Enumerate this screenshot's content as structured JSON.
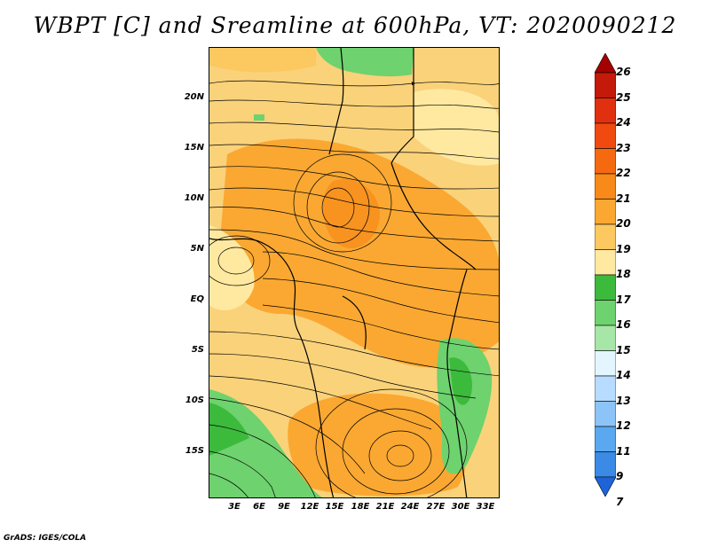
{
  "title": "WBPT [C] and Sreamline at 600hPa, VT: 2020090212",
  "footer": "GrADS: IGES/COLA",
  "map": {
    "lat_ticks": [
      "20N",
      "15N",
      "10N",
      "5N",
      "EQ",
      "5S",
      "10S",
      "15S"
    ],
    "lon_ticks": [
      "3E",
      "6E",
      "9E",
      "12E",
      "15E",
      "18E",
      "21E",
      "24E",
      "27E",
      "30E",
      "33E"
    ],
    "legend": {
      "levels": [
        "26",
        "25",
        "24",
        "23",
        "22",
        "21",
        "20",
        "19",
        "18",
        "17",
        "16",
        "15",
        "14",
        "13",
        "12",
        "11",
        "9",
        "7"
      ],
      "colors": [
        "#a50000",
        "#c41a0a",
        "#e03010",
        "#f04a10",
        "#f56a10",
        "#f78a18",
        "#faa832",
        "#fcc860",
        "#ffe9a0",
        "#3cba3c",
        "#6ed26e",
        "#a6e6a6",
        "#e3f5ff",
        "#b8dcff",
        "#8cc4f8",
        "#5aa8f0",
        "#3a8ae6",
        "#1e64d8"
      ]
    }
  }
}
